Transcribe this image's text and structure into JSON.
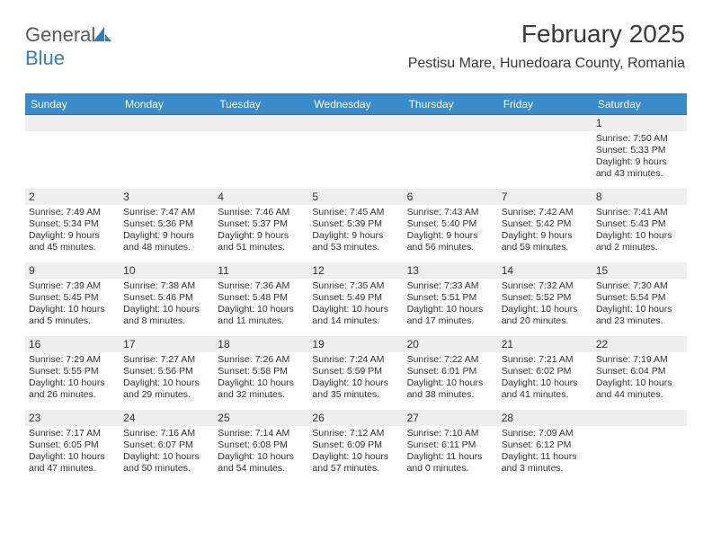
{
  "logo": {
    "text1": "General",
    "text2": "Blue",
    "text_color": "#5a5a5a",
    "blue_color": "#2f7fc0"
  },
  "title": "February 2025",
  "location": "Pestisu Mare, Hunedoara County, Romania",
  "header_bg": "#3b8bc8",
  "header_border": "#2a6ea4",
  "daynum_bg": "#eeeeee",
  "days": [
    "Sunday",
    "Monday",
    "Tuesday",
    "Wednesday",
    "Thursday",
    "Friday",
    "Saturday"
  ],
  "weeks": [
    [
      {
        "n": "",
        "d": ""
      },
      {
        "n": "",
        "d": ""
      },
      {
        "n": "",
        "d": ""
      },
      {
        "n": "",
        "d": ""
      },
      {
        "n": "",
        "d": ""
      },
      {
        "n": "",
        "d": ""
      },
      {
        "n": "1",
        "d": "Sunrise: 7:50 AM\nSunset: 5:33 PM\nDaylight: 9 hours and 43 minutes."
      }
    ],
    [
      {
        "n": "2",
        "d": "Sunrise: 7:49 AM\nSunset: 5:34 PM\nDaylight: 9 hours and 45 minutes."
      },
      {
        "n": "3",
        "d": "Sunrise: 7:47 AM\nSunset: 5:36 PM\nDaylight: 9 hours and 48 minutes."
      },
      {
        "n": "4",
        "d": "Sunrise: 7:46 AM\nSunset: 5:37 PM\nDaylight: 9 hours and 51 minutes."
      },
      {
        "n": "5",
        "d": "Sunrise: 7:45 AM\nSunset: 5:39 PM\nDaylight: 9 hours and 53 minutes."
      },
      {
        "n": "6",
        "d": "Sunrise: 7:43 AM\nSunset: 5:40 PM\nDaylight: 9 hours and 56 minutes."
      },
      {
        "n": "7",
        "d": "Sunrise: 7:42 AM\nSunset: 5:42 PM\nDaylight: 9 hours and 59 minutes."
      },
      {
        "n": "8",
        "d": "Sunrise: 7:41 AM\nSunset: 5:43 PM\nDaylight: 10 hours and 2 minutes."
      }
    ],
    [
      {
        "n": "9",
        "d": "Sunrise: 7:39 AM\nSunset: 5:45 PM\nDaylight: 10 hours and 5 minutes."
      },
      {
        "n": "10",
        "d": "Sunrise: 7:38 AM\nSunset: 5:46 PM\nDaylight: 10 hours and 8 minutes."
      },
      {
        "n": "11",
        "d": "Sunrise: 7:36 AM\nSunset: 5:48 PM\nDaylight: 10 hours and 11 minutes."
      },
      {
        "n": "12",
        "d": "Sunrise: 7:35 AM\nSunset: 5:49 PM\nDaylight: 10 hours and 14 minutes."
      },
      {
        "n": "13",
        "d": "Sunrise: 7:33 AM\nSunset: 5:51 PM\nDaylight: 10 hours and 17 minutes."
      },
      {
        "n": "14",
        "d": "Sunrise: 7:32 AM\nSunset: 5:52 PM\nDaylight: 10 hours and 20 minutes."
      },
      {
        "n": "15",
        "d": "Sunrise: 7:30 AM\nSunset: 5:54 PM\nDaylight: 10 hours and 23 minutes."
      }
    ],
    [
      {
        "n": "16",
        "d": "Sunrise: 7:29 AM\nSunset: 5:55 PM\nDaylight: 10 hours and 26 minutes."
      },
      {
        "n": "17",
        "d": "Sunrise: 7:27 AM\nSunset: 5:56 PM\nDaylight: 10 hours and 29 minutes."
      },
      {
        "n": "18",
        "d": "Sunrise: 7:26 AM\nSunset: 5:58 PM\nDaylight: 10 hours and 32 minutes."
      },
      {
        "n": "19",
        "d": "Sunrise: 7:24 AM\nSunset: 5:59 PM\nDaylight: 10 hours and 35 minutes."
      },
      {
        "n": "20",
        "d": "Sunrise: 7:22 AM\nSunset: 6:01 PM\nDaylight: 10 hours and 38 minutes."
      },
      {
        "n": "21",
        "d": "Sunrise: 7:21 AM\nSunset: 6:02 PM\nDaylight: 10 hours and 41 minutes."
      },
      {
        "n": "22",
        "d": "Sunrise: 7:19 AM\nSunset: 6:04 PM\nDaylight: 10 hours and 44 minutes."
      }
    ],
    [
      {
        "n": "23",
        "d": "Sunrise: 7:17 AM\nSunset: 6:05 PM\nDaylight: 10 hours and 47 minutes."
      },
      {
        "n": "24",
        "d": "Sunrise: 7:16 AM\nSunset: 6:07 PM\nDaylight: 10 hours and 50 minutes."
      },
      {
        "n": "25",
        "d": "Sunrise: 7:14 AM\nSunset: 6:08 PM\nDaylight: 10 hours and 54 minutes."
      },
      {
        "n": "26",
        "d": "Sunrise: 7:12 AM\nSunset: 6:09 PM\nDaylight: 10 hours and 57 minutes."
      },
      {
        "n": "27",
        "d": "Sunrise: 7:10 AM\nSunset: 6:11 PM\nDaylight: 11 hours and 0 minutes."
      },
      {
        "n": "28",
        "d": "Sunrise: 7:09 AM\nSunset: 6:12 PM\nDaylight: 11 hours and 3 minutes."
      },
      {
        "n": "",
        "d": ""
      }
    ]
  ]
}
